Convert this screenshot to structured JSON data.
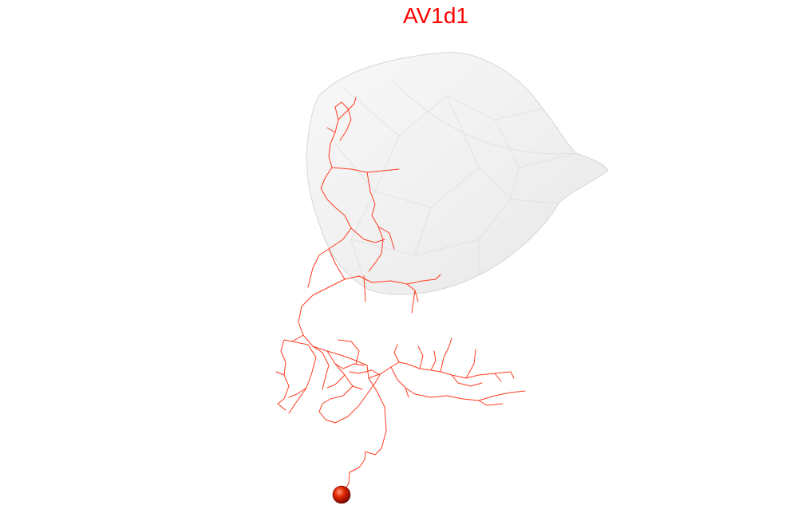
{
  "title": "AV1d1",
  "colors": {
    "title": "#ff0000",
    "neuron": "#ff3b1f",
    "soma": "#d11a00",
    "region_fill": "#f0f0f0",
    "region_stroke": "#d6d6d6"
  },
  "region": {
    "name": "AV1d1",
    "shape": "translucent-mesh"
  },
  "neuron": {
    "soma_icon": "sphere-icon"
  }
}
